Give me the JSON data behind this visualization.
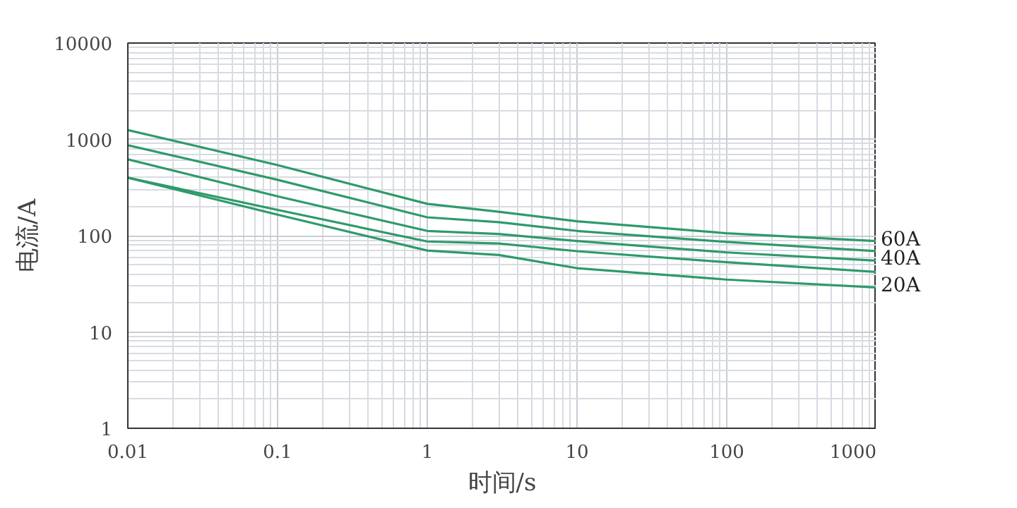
{
  "chart_data": {
    "type": "line",
    "xlabel": "时间/s",
    "ylabel": "电流/A",
    "log": "xy",
    "grid": true,
    "line_style": "solid",
    "marker": "none",
    "x": [
      0.01,
      0.1,
      1,
      3,
      10,
      100,
      1000
    ],
    "xlim": [
      0.01,
      1000
    ],
    "ylim": [
      1,
      10000
    ],
    "xticks": [
      0.01,
      0.1,
      1,
      10,
      100,
      1000
    ],
    "yticks": [
      1,
      10,
      100,
      1000,
      10000
    ],
    "series": [
      {
        "name": "60A",
        "color": "#2e9a6a",
        "values": [
          1250,
          540,
          214,
          177,
          141,
          106,
          88
        ]
      },
      {
        "color": "#2e9a6a",
        "values": [
          870,
          380,
          155,
          138,
          112,
          86,
          69
        ]
      },
      {
        "name": "40A",
        "color": "#2e9a6a",
        "values": [
          620,
          256,
          112,
          104,
          88,
          67,
          55
        ]
      },
      {
        "color": "#2e9a6a",
        "values": [
          400,
          185,
          87,
          83,
          69,
          53,
          42
        ]
      },
      {
        "name": "20A",
        "color": "#2e9a6a",
        "values": [
          400,
          165,
          70,
          63,
          46,
          35,
          29
        ]
      }
    ]
  }
}
